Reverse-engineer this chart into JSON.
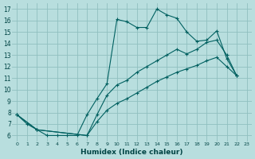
{
  "xlabel": "Humidex (Indice chaleur)",
  "bg_color": "#b8dede",
  "grid_color": "#90c0c0",
  "line_color": "#006060",
  "xlim": [
    -0.5,
    23.5
  ],
  "ylim": [
    5.5,
    17.5
  ],
  "xticks": [
    0,
    1,
    2,
    3,
    4,
    5,
    6,
    7,
    8,
    9,
    10,
    11,
    12,
    13,
    14,
    15,
    16,
    17,
    18,
    19,
    20,
    21,
    22,
    23
  ],
  "yticks": [
    6,
    7,
    8,
    9,
    10,
    11,
    12,
    13,
    14,
    15,
    16,
    17
  ],
  "line1_x": [
    0,
    1,
    2,
    3,
    4,
    5,
    6,
    7,
    8,
    9,
    10,
    11,
    12,
    13,
    14,
    15,
    16,
    17,
    18,
    19,
    20,
    21,
    22
  ],
  "line1_y": [
    7.8,
    7.0,
    6.5,
    6.0,
    6.0,
    6.0,
    6.0,
    7.8,
    9.2,
    10.5,
    16.1,
    15.9,
    15.4,
    15.4,
    17.0,
    16.5,
    16.2,
    15.0,
    14.2,
    14.3,
    15.1,
    12.7,
    11.2
  ],
  "line2_x": [
    0,
    2,
    7,
    8,
    9,
    10,
    11,
    12,
    13,
    14,
    15,
    16,
    17,
    18,
    19,
    20,
    21,
    22
  ],
  "line2_y": [
    7.8,
    6.5,
    6.0,
    7.8,
    9.5,
    10.4,
    10.8,
    11.5,
    12.0,
    12.5,
    13.0,
    13.5,
    13.1,
    13.5,
    14.1,
    14.3,
    13.0,
    11.2
  ],
  "line3_x": [
    0,
    2,
    7,
    8,
    9,
    10,
    11,
    12,
    13,
    14,
    15,
    16,
    17,
    18,
    19,
    20,
    21,
    22
  ],
  "line3_y": [
    7.8,
    6.5,
    6.0,
    7.2,
    8.2,
    8.8,
    9.2,
    9.7,
    10.2,
    10.7,
    11.1,
    11.5,
    11.8,
    12.1,
    12.5,
    12.8,
    12.0,
    11.2
  ]
}
